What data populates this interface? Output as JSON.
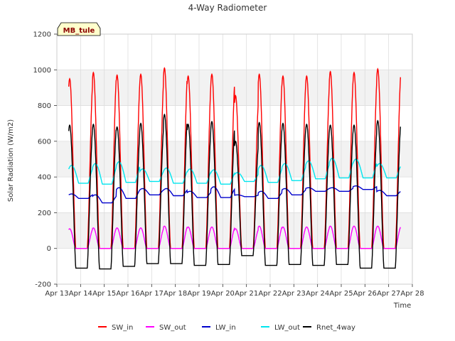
{
  "chart_data": {
    "type": "line",
    "title": "4-Way Radiometer",
    "xlabel": "Time",
    "ylabel": "Solar Radiation (W/m2)",
    "station_label": "MB_tule",
    "ylim": [
      -200,
      1200
    ],
    "yticks": [
      -200,
      0,
      200,
      400,
      600,
      800,
      1000,
      1200
    ],
    "xlim": [
      13,
      28
    ],
    "xticks": [
      13,
      14,
      15,
      16,
      17,
      18,
      19,
      20,
      21,
      22,
      23,
      24,
      25,
      26,
      27,
      28
    ],
    "xtick_labels": [
      "Apr 13",
      "Apr 14",
      "Apr 15",
      "Apr 16",
      "Apr 17",
      "Apr 18",
      "Apr 19",
      "Apr 20",
      "Apr 21",
      "Apr 22",
      "Apr 23",
      "Apr 24",
      "Apr 25",
      "Apr 26",
      "Apr 27",
      "Apr 28"
    ],
    "grid": true,
    "legend_position": "bottom",
    "days": [
      "Apr 13",
      "Apr 14",
      "Apr 15",
      "Apr 16",
      "Apr 17",
      "Apr 18",
      "Apr 19",
      "Apr 20",
      "Apr 21",
      "Apr 22",
      "Apr 23",
      "Apr 24",
      "Apr 25",
      "Apr 26",
      "Apr 27"
    ],
    "series": [
      {
        "name": "SW_in",
        "color": "#ff0000",
        "night_value": 0,
        "daily_peak": [
          950,
          985,
          970,
          975,
          1010,
          965,
          975,
          855,
          975,
          965,
          965,
          990,
          985,
          1005
        ],
        "daily_base": [
          0,
          0,
          0,
          0,
          0,
          0,
          0,
          0,
          0,
          0,
          0,
          0,
          0,
          0
        ]
      },
      {
        "name": "SW_out",
        "color": "#ff00ff",
        "night_value": 0,
        "daily_peak": [
          110,
          115,
          115,
          115,
          125,
          120,
          120,
          110,
          125,
          120,
          120,
          125,
          125,
          125
        ],
        "daily_base": [
          0,
          0,
          0,
          0,
          0,
          0,
          0,
          0,
          0,
          0,
          0,
          0,
          0,
          0
        ]
      },
      {
        "name": "LW_in",
        "color": "#0000cc",
        "night_value": 280,
        "daily_peak": [
          305,
          300,
          340,
          335,
          335,
          320,
          345,
          300,
          320,
          335,
          340,
          340,
          350,
          325
        ],
        "daily_base": [
          280,
          255,
          280,
          300,
          295,
          285,
          285,
          290,
          280,
          300,
          320,
          320,
          330,
          295
        ]
      },
      {
        "name": "LW_out",
        "color": "#00e5ee",
        "night_value": 370,
        "daily_peak": [
          465,
          475,
          485,
          445,
          450,
          445,
          440,
          425,
          465,
          475,
          490,
          505,
          500,
          475
        ],
        "daily_base": [
          365,
          360,
          370,
          375,
          365,
          365,
          360,
          375,
          370,
          380,
          390,
          395,
          395,
          395
        ]
      },
      {
        "name": "Rnet_4way",
        "color": "#000000",
        "night_value": -100,
        "daily_peak": [
          690,
          695,
          680,
          700,
          750,
          695,
          710,
          600,
          705,
          700,
          695,
          690,
          690,
          715
        ],
        "daily_base": [
          -110,
          -115,
          -100,
          -85,
          -85,
          -95,
          -90,
          -40,
          -95,
          -90,
          -95,
          -90,
          -110,
          -110
        ]
      }
    ]
  }
}
